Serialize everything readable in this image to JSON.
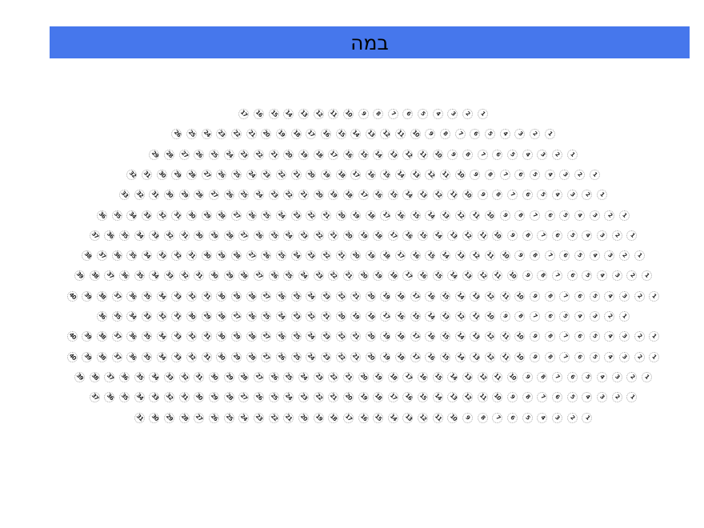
{
  "stage": {
    "label": "במה",
    "color": "#4677ec"
  },
  "seat_map": {
    "rows": [
      {
        "seats": 17
      },
      {
        "seats": 26
      },
      {
        "seats": 29
      },
      {
        "seats": 32
      },
      {
        "seats": 33
      },
      {
        "seats": 36
      },
      {
        "seats": 37
      },
      {
        "seats": 38
      },
      {
        "seats": 39
      },
      {
        "seats": 40
      },
      {
        "seats": 36
      },
      {
        "seats": 40
      },
      {
        "seats": 40
      },
      {
        "seats": 39
      },
      {
        "seats": 37
      },
      {
        "seats": 31
      }
    ],
    "numbering": "right-to-left"
  }
}
